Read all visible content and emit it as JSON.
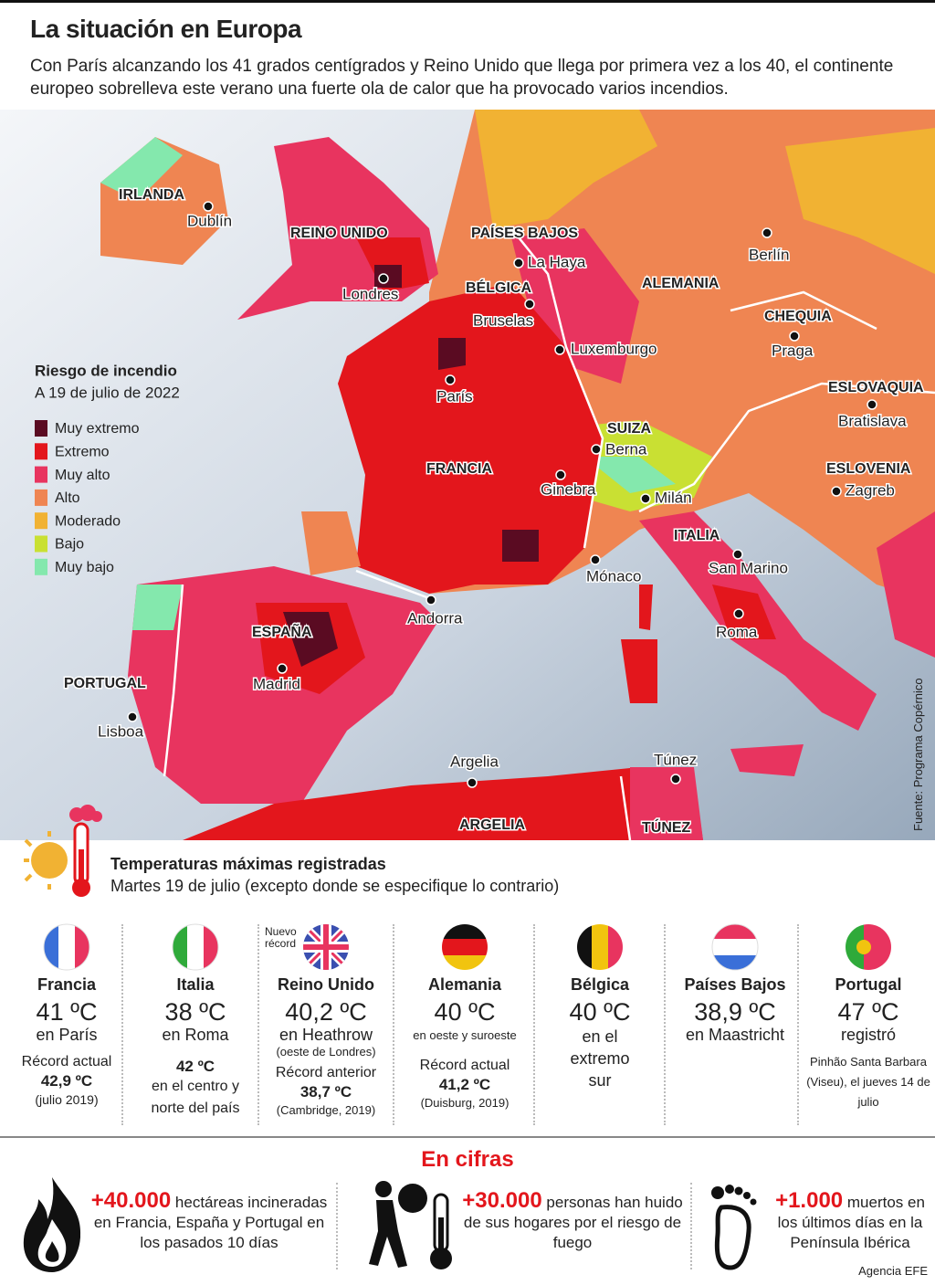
{
  "header": {
    "title": "La situación en Europa",
    "subtitle": "Con París alcanzando los 41 grados centígrados y Reino Unido que llega por primera vez a los 40, el continente europeo sobrelleva este verano una fuerte ola de calor que ha provocado varios incendios."
  },
  "map": {
    "countries": [
      "IRLANDA",
      "REINO UNIDO",
      "PAÍSES BAJOS",
      "BÉLGICA",
      "ALEMANIA",
      "CHEQUIA",
      "ESLOVAQUIA",
      "SUIZA",
      "FRANCIA",
      "ESLOVENIA",
      "ITALIA",
      "ESPAÑA",
      "PORTUGAL",
      "ARGELIA",
      "TÚNEZ"
    ],
    "cities": [
      "Dublín",
      "Londres",
      "La Haya",
      "Bruselas",
      "Berlín",
      "Luxemburgo",
      "Praga",
      "París",
      "Bratislava",
      "Berna",
      "Ginebra",
      "Milán",
      "Zagreb",
      "Mónaco",
      "San Marino",
      "Andorra",
      "Roma",
      "Madrid",
      "Lisboa",
      "Argelia",
      "Túnez"
    ],
    "source": "Fuente: Programa Copérnico"
  },
  "legend": {
    "title": "Riesgo de incendio",
    "subtitle": "A 19 de julio de 2022",
    "items": [
      {
        "label": "Muy extremo",
        "color": "#5a0b22"
      },
      {
        "label": "Extremo",
        "color": "#e3161c"
      },
      {
        "label": "Muy alto",
        "color": "#e8345f"
      },
      {
        "label": "Alto",
        "color": "#ef8552"
      },
      {
        "label": "Moderado",
        "color": "#f1b233"
      },
      {
        "label": "Bajo",
        "color": "#c9e033"
      },
      {
        "label": "Muy bajo",
        "color": "#84e8ad"
      }
    ]
  },
  "temps": {
    "title": "Temperaturas máximas registradas",
    "subtitle": "Martes 19 de julio (excepto donde se especifique lo contrario)",
    "cards": [
      {
        "country": "Francia",
        "temp": "41 ºC",
        "place": "en París",
        "record_label": "Récord actual",
        "record": "42,9 ºC",
        "record_note": "(julio 2019)"
      },
      {
        "country": "Italia",
        "temp": "38 ºC",
        "place": "en Roma",
        "record": "42 ºC",
        "record_note": "en el centro y norte del país"
      },
      {
        "country": "Reino Unido",
        "badge": "Nuevo récord",
        "temp": "40,2 ºC",
        "place": "en Heathrow",
        "place_note": "(oeste de Londres)",
        "record_label": "Récord anterior",
        "record": "38,7 ºC",
        "record_note": "(Cambridge, 2019)"
      },
      {
        "country": "Alemania",
        "temp": "40 ºC",
        "place": "en oeste y suroeste",
        "record_label": "Récord actual",
        "record": "41,2 ºC",
        "record_note": "(Duisburg, 2019)"
      },
      {
        "country": "Bélgica",
        "temp": "40 ºC",
        "place": "en el extremo sur"
      },
      {
        "country": "Países Bajos",
        "temp": "38,9 ºC",
        "place": "en Maastricht"
      },
      {
        "country": "Portugal",
        "temp": "47 ºC",
        "place": "registró",
        "place_note": "Pinhão Santa Barbara (Viseu), el jueves 14 de julio"
      }
    ]
  },
  "figures": {
    "title": "En cifras",
    "items": [
      {
        "number": "+40.000",
        "text": "hectáreas incineradas en Francia, España y Portugal en los pasados 10 días"
      },
      {
        "number": "+30.000",
        "text": "personas han huido de sus hogares por el riesgo de fuego"
      },
      {
        "number": "+1.000",
        "text": "muertos en los últimos días en la Península Ibérica"
      }
    ],
    "credit": "Agencia EFE"
  }
}
